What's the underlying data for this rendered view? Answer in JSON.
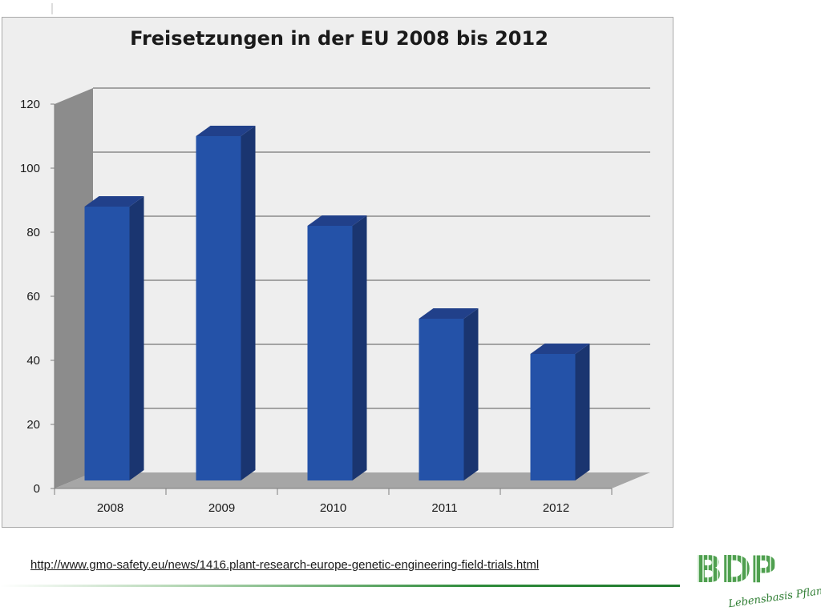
{
  "chart_data": {
    "type": "bar",
    "title": "Freisetzungen in der EU 2008 bis 2012",
    "categories": [
      "2008",
      "2009",
      "2010",
      "2011",
      "2012"
    ],
    "values": [
      88,
      110,
      82,
      53,
      42
    ],
    "ylim": [
      0,
      120
    ],
    "yticks": [
      0,
      20,
      40,
      60,
      80,
      100,
      120
    ],
    "xlabel": "",
    "ylabel": "",
    "grid": true,
    "style": "3d",
    "bar_color": "#2452a8",
    "legend": "none"
  },
  "footer": {
    "source_url": "http://www.gmo-safety.eu/news/1416.plant-research-europe-genetic-engineering-field-trials.html"
  },
  "logo": {
    "letters": "BDP",
    "tagline": "Lebensbasis Pflanze",
    "color": "#2e8b3a"
  }
}
